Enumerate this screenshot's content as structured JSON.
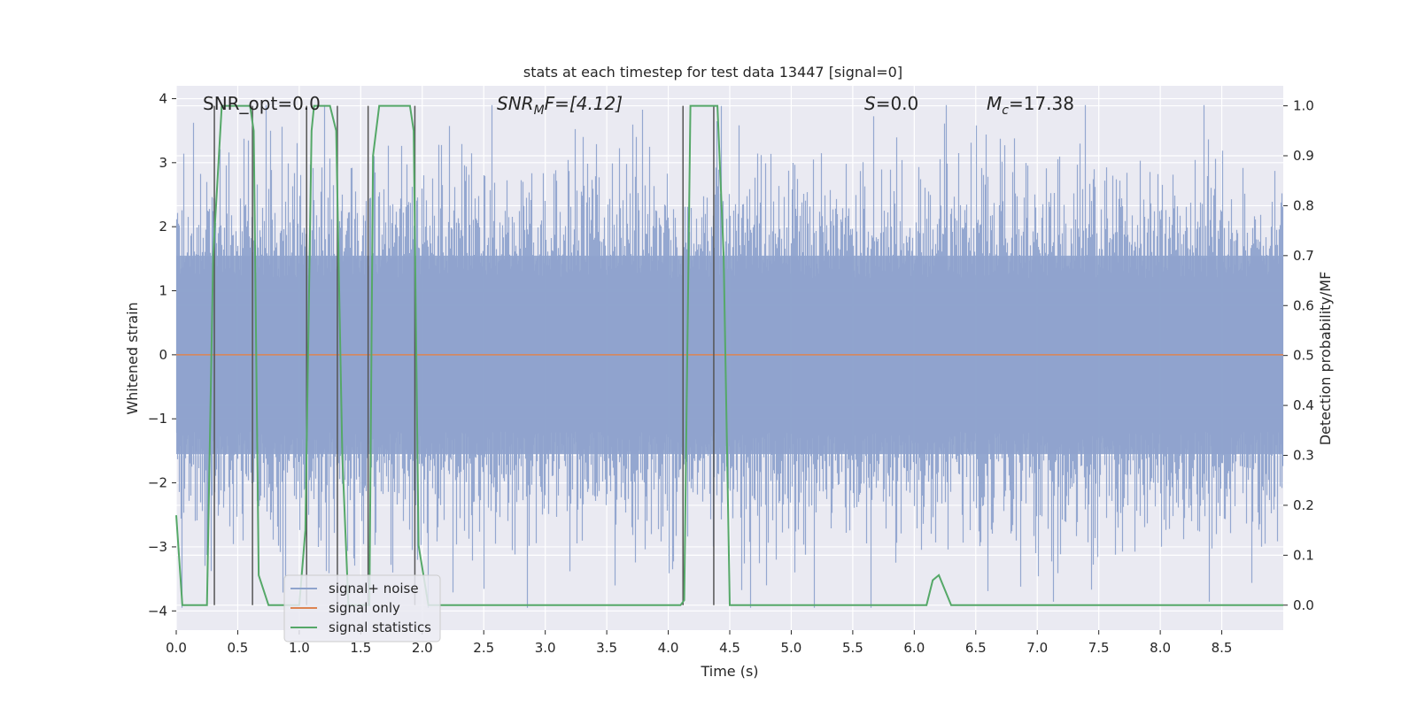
{
  "chart_data": {
    "type": "line",
    "title": "stats at each timestep for test data 13447 [signal=0]",
    "xlabel": "Time (s)",
    "ylabel_left": "Whitened strain",
    "ylabel_right": "Detection probability/MF",
    "xlim": [
      0.0,
      9.0
    ],
    "ylim_left": [
      -4.3,
      4.2
    ],
    "ylim_right": [
      -0.05,
      1.04
    ],
    "xticks": [
      "0.0",
      "0.5",
      "1.0",
      "1.5",
      "2.0",
      "2.5",
      "3.0",
      "3.5",
      "4.0",
      "4.5",
      "5.0",
      "5.5",
      "6.0",
      "6.5",
      "7.0",
      "7.5",
      "8.0",
      "8.5"
    ],
    "yticks_left": [
      "4",
      "3",
      "2",
      "1",
      "0",
      "−1",
      "−2",
      "−3",
      "−4"
    ],
    "yticks_left_values": [
      4,
      3,
      2,
      1,
      0,
      -1,
      -2,
      -3,
      -4
    ],
    "yticks_right": [
      "1.0",
      "0.9",
      "0.8",
      "0.7",
      "0.6",
      "0.5",
      "0.4",
      "0.3",
      "0.2",
      "0.1",
      "0.0"
    ],
    "yticks_right_values": [
      1.0,
      0.9,
      0.8,
      0.7,
      0.6,
      0.5,
      0.4,
      0.3,
      0.2,
      0.1,
      0.0
    ],
    "annotations": {
      "snr_opt_text": "SNR_opt=0.0",
      "snr_mf_main": "SNR",
      "snr_mf_sub": "M",
      "snr_mf_rest": "F=[4.12]",
      "s_main": "S",
      "s_rest": "=0.0",
      "mc_main": "M",
      "mc_sub": "c",
      "mc_rest": "=17.38"
    },
    "series": [
      {
        "name": "signal+ noise",
        "color": "#8fa3cd",
        "description": "whitened noise, amplitude mostly within ±2.5 with spikes to ~±3.9"
      },
      {
        "name": "signal only",
        "color": "#dd8452",
        "values_constant": 0.0
      },
      {
        "name": "signal statistics",
        "color": "#55a868",
        "axis": "right",
        "x": [
          0.0,
          0.05,
          0.1,
          0.25,
          0.3,
          0.37,
          0.6,
          0.63,
          0.67,
          0.75,
          1.0,
          1.05,
          1.1,
          1.12,
          1.15,
          1.25,
          1.3,
          1.35,
          1.4,
          1.57,
          1.6,
          1.65,
          1.9,
          1.93,
          1.97,
          2.05,
          4.1,
          4.13,
          4.18,
          4.4,
          4.45,
          4.5,
          4.55,
          6.1,
          6.15,
          6.2,
          6.3,
          6.4,
          9.0
        ],
        "values": [
          0.18,
          0.0,
          0.0,
          0.0,
          0.7,
          1.0,
          1.0,
          0.95,
          0.06,
          0.0,
          0.0,
          0.15,
          0.95,
          1.0,
          1.0,
          1.0,
          0.95,
          0.3,
          0.0,
          0.0,
          0.9,
          1.0,
          1.0,
          0.95,
          0.12,
          0.0,
          0.0,
          0.01,
          1.0,
          1.0,
          0.7,
          0.0,
          0.0,
          0.0,
          0.05,
          0.06,
          0.0,
          0.0,
          0.0
        ]
      }
    ],
    "vertical_markers_x": [
      0.31,
      0.62,
      1.06,
      1.31,
      1.56,
      1.94,
      4.12,
      4.37
    ],
    "legend": {
      "location": "lower-left",
      "entries": [
        "signal+ noise",
        "signal only",
        "signal statistics"
      ]
    },
    "grid": true
  }
}
